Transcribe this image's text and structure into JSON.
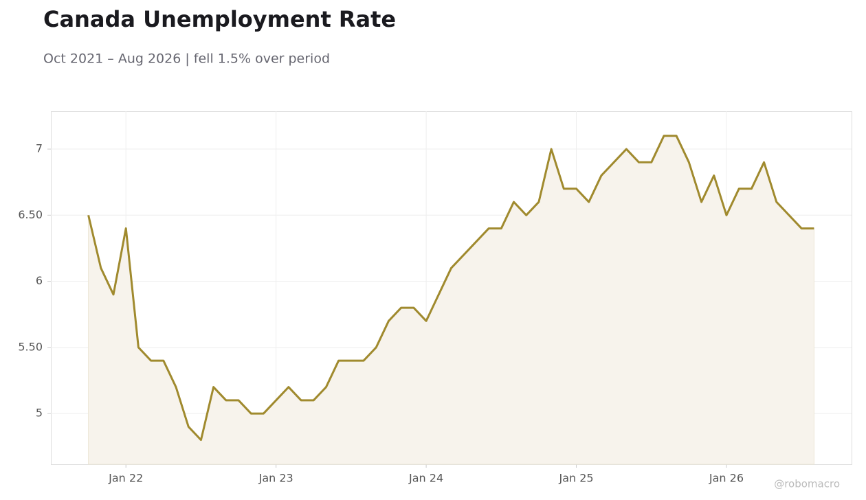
{
  "chart_data": {
    "type": "line",
    "title": "Canada Unemployment Rate",
    "subtitle": "Oct 2021 – Aug 2026 | fell 1.5% over period",
    "credit": "@robomacro",
    "x": [
      "2021-10",
      "2021-11",
      "2021-12",
      "2022-01",
      "2022-02",
      "2022-03",
      "2022-04",
      "2022-05",
      "2022-06",
      "2022-07",
      "2022-08",
      "2022-09",
      "2022-10",
      "2022-11",
      "2022-12",
      "2023-01",
      "2023-02",
      "2023-03",
      "2023-04",
      "2023-05",
      "2023-06",
      "2023-07",
      "2023-08",
      "2023-09",
      "2023-10",
      "2023-11",
      "2023-12",
      "2024-01",
      "2024-02",
      "2024-03",
      "2024-04",
      "2024-05",
      "2024-06",
      "2024-07",
      "2024-08",
      "2024-09",
      "2024-10",
      "2024-11",
      "2024-12",
      "2025-01",
      "2025-02",
      "2025-03",
      "2025-04",
      "2025-05",
      "2025-06",
      "2025-07",
      "2025-08",
      "2025-09",
      "2025-10",
      "2025-11",
      "2025-12",
      "2026-01",
      "2026-02",
      "2026-03",
      "2026-04",
      "2026-05",
      "2026-06",
      "2026-07",
      "2026-08"
    ],
    "series": [
      {
        "color": "#a08a2e",
        "fill": "#f7f3ec",
        "values": [
          6.5,
          6.1,
          5.9,
          6.4,
          5.5,
          5.4,
          5.4,
          5.2,
          4.9,
          4.8,
          5.2,
          5.1,
          5.1,
          5.0,
          5.0,
          5.1,
          5.2,
          5.1,
          5.1,
          5.2,
          5.4,
          5.4,
          5.4,
          5.5,
          5.7,
          5.8,
          5.8,
          5.7,
          5.9,
          6.1,
          6.2,
          6.3,
          6.4,
          6.4,
          6.6,
          6.5,
          6.6,
          7.0,
          6.7,
          6.7,
          6.6,
          6.8,
          6.9,
          7.0,
          6.9,
          6.9,
          7.1,
          7.1,
          6.9,
          6.6,
          6.8,
          6.5,
          6.7,
          6.7,
          6.9,
          6.6,
          6.5,
          6.4,
          6.4
        ]
      }
    ],
    "xlim": [
      "2021-07",
      "2026-11"
    ],
    "xticks": [
      {
        "value": "2022-01",
        "label": "Jan 22"
      },
      {
        "value": "2023-01",
        "label": "Jan 23"
      },
      {
        "value": "2024-01",
        "label": "Jan 24"
      },
      {
        "value": "2025-01",
        "label": "Jan 25"
      },
      {
        "value": "2026-01",
        "label": "Jan 26"
      }
    ],
    "ylim": [
      4.616,
      7.286
    ],
    "yticks": [
      5,
      {
        "value": 5.5,
        "label": "5.50"
      },
      6,
      {
        "value": 6.5,
        "label": "6.50"
      },
      7
    ],
    "grid": true
  }
}
